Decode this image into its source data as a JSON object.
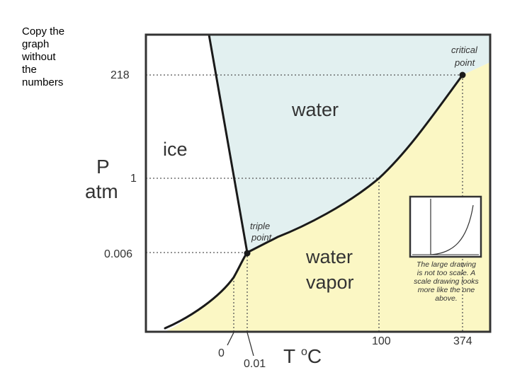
{
  "note": "Copy the\ngraph\nwithout\nthe\nnumbers",
  "y_axis": {
    "symbol": "P",
    "unit": "atm",
    "ticks": [
      "218",
      "1",
      "0.006"
    ]
  },
  "x_axis": {
    "symbol": "T",
    "unit": "oC",
    "ticks": [
      "0",
      "0.01",
      "100",
      "374"
    ]
  },
  "regions": {
    "solid": "ice",
    "liquid": "water",
    "gas_line1": "water",
    "gas_line2": "vapor"
  },
  "points": {
    "triple_line1": "triple",
    "triple_line2": "point",
    "critical_line1": "critical",
    "critical_line2": "point"
  },
  "inset_caption": [
    "The large drawing",
    "is not too scale. A",
    "scale drawing looks",
    "more like the one",
    "above."
  ],
  "colors": {
    "liquid": "#e2f0f0",
    "gas": "#fbf7c4",
    "line": "#1a1a1a",
    "guide": "#555555"
  }
}
